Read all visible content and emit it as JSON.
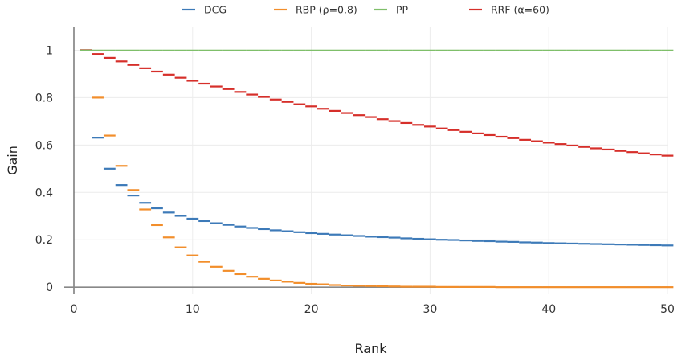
{
  "chart_data": {
    "type": "line",
    "title": "",
    "xlabel": "Rank",
    "ylabel": "Gain",
    "xlim": [
      0,
      50
    ],
    "ylim": [
      -0.03,
      1.1
    ],
    "x_ticks": [
      0,
      10,
      20,
      30,
      40,
      50
    ],
    "y_ticks": [
      0,
      0.2,
      0.4,
      0.6,
      0.8,
      1
    ],
    "y_tick_labels": [
      "0",
      "0.2",
      "0.4",
      "0.6",
      "0.8",
      "1"
    ],
    "grid": true,
    "legend_position": "top",
    "x": [
      1,
      2,
      3,
      4,
      5,
      6,
      7,
      8,
      9,
      10,
      11,
      12,
      13,
      14,
      15,
      16,
      17,
      18,
      19,
      20,
      21,
      22,
      23,
      24,
      25,
      26,
      27,
      28,
      29,
      30,
      31,
      32,
      33,
      34,
      35,
      36,
      37,
      38,
      39,
      40,
      41,
      42,
      43,
      44,
      45,
      46,
      47,
      48,
      49,
      50
    ],
    "series": [
      {
        "name": "DCG",
        "color": "#3d7ab8",
        "values": [
          1.0,
          0.631,
          0.5,
          0.431,
          0.387,
          0.356,
          0.333,
          0.315,
          0.301,
          0.289,
          0.279,
          0.27,
          0.263,
          0.256,
          0.25,
          0.245,
          0.24,
          0.236,
          0.232,
          0.228,
          0.225,
          0.222,
          0.219,
          0.216,
          0.213,
          0.211,
          0.209,
          0.206,
          0.204,
          0.202,
          0.2,
          0.199,
          0.197,
          0.195,
          0.194,
          0.192,
          0.191,
          0.189,
          0.188,
          0.186,
          0.185,
          0.184,
          0.183,
          0.182,
          0.181,
          0.18,
          0.179,
          0.178,
          0.177,
          0.176
        ]
      },
      {
        "name": "RBP (ρ=0.8)",
        "color": "#f28e2b",
        "values": [
          1.0,
          0.8,
          0.64,
          0.512,
          0.41,
          0.328,
          0.262,
          0.21,
          0.168,
          0.134,
          0.107,
          0.086,
          0.069,
          0.055,
          0.044,
          0.035,
          0.028,
          0.023,
          0.018,
          0.014,
          0.012,
          0.009,
          0.007,
          0.006,
          0.005,
          0.004,
          0.003,
          0.002,
          0.002,
          0.002,
          0.001,
          0.001,
          0.001,
          0.001,
          0.001,
          0.0,
          0.0,
          0.0,
          0.0,
          0.0,
          0.0,
          0.0,
          0.0,
          0.0,
          0.0,
          0.0,
          0.0,
          0.0,
          0.0,
          0.0
        ]
      },
      {
        "name": "PP",
        "color": "#7fbf6a",
        "values": [
          1,
          1,
          1,
          1,
          1,
          1,
          1,
          1,
          1,
          1,
          1,
          1,
          1,
          1,
          1,
          1,
          1,
          1,
          1,
          1,
          1,
          1,
          1,
          1,
          1,
          1,
          1,
          1,
          1,
          1,
          1,
          1,
          1,
          1,
          1,
          1,
          1,
          1,
          1,
          1,
          1,
          1,
          1,
          1,
          1,
          1,
          1,
          1,
          1,
          1
        ]
      },
      {
        "name": "RRF (α=60)",
        "color": "#d62f2a",
        "values": [
          1.0,
          0.984,
          0.968,
          0.953,
          0.938,
          0.924,
          0.91,
          0.897,
          0.884,
          0.871,
          0.859,
          0.847,
          0.836,
          0.824,
          0.813,
          0.803,
          0.792,
          0.782,
          0.772,
          0.763,
          0.753,
          0.744,
          0.735,
          0.726,
          0.718,
          0.709,
          0.701,
          0.693,
          0.685,
          0.678,
          0.67,
          0.663,
          0.656,
          0.649,
          0.642,
          0.635,
          0.629,
          0.622,
          0.616,
          0.61,
          0.604,
          0.598,
          0.592,
          0.586,
          0.581,
          0.575,
          0.57,
          0.565,
          0.56,
          0.555
        ]
      }
    ]
  }
}
